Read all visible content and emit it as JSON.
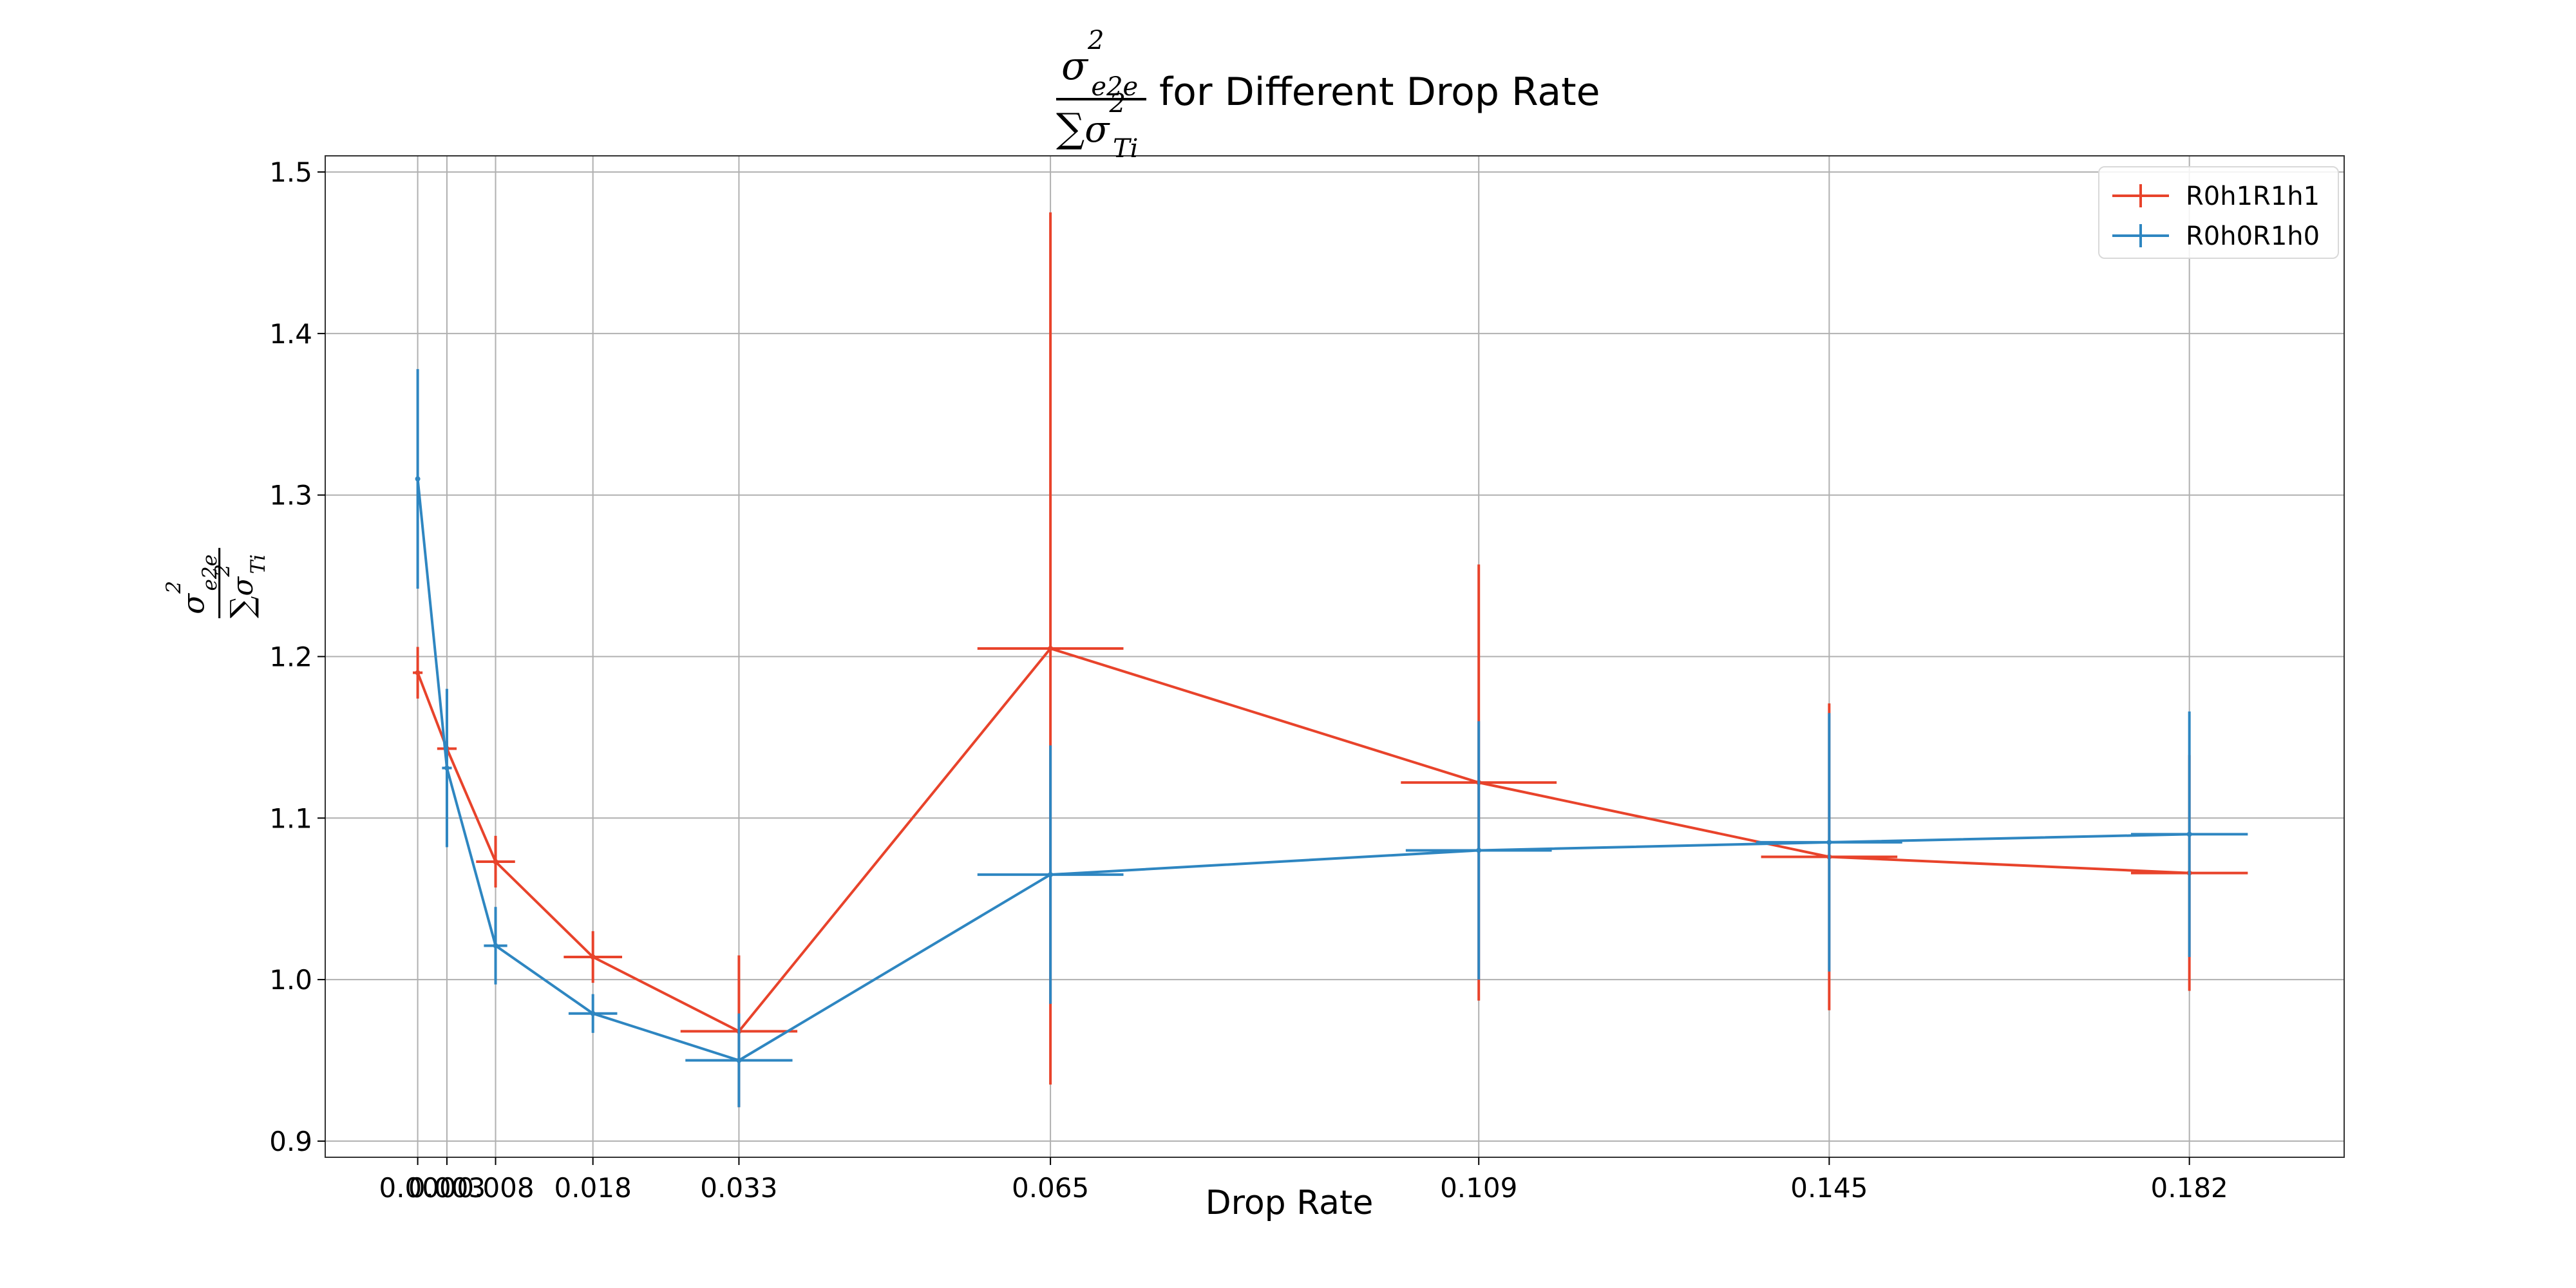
{
  "chart_data": {
    "type": "line",
    "title": "for Different Drop Rate",
    "title_math": {
      "numerator": "σ",
      "numerator_sup": "2",
      "numerator_sub": "e2e",
      "denominator_sum": "∑",
      "denominator": "σ",
      "denominator_sup": "2",
      "denominator_sub": "Ti"
    },
    "xlabel": "Drop Rate",
    "x_tick_labels": [
      "0.000",
      "0.003",
      "0.008",
      "0.018",
      "0.033",
      "0.065",
      "0.109",
      "0.145",
      "0.182"
    ],
    "ylim": [
      0.89,
      1.51
    ],
    "y_ticks": [
      0.9,
      1.0,
      1.1,
      1.2,
      1.3,
      1.4,
      1.5
    ],
    "y_tick_labels": [
      "0.9",
      "1.0",
      "1.1",
      "1.2",
      "1.3",
      "1.4",
      "1.5"
    ],
    "grid": true,
    "legend_position": "top-right",
    "series": [
      {
        "name": "R0h1R1h1",
        "color": "#e8432b",
        "x": [
          0.0,
          0.003,
          0.008,
          0.018,
          0.033,
          0.065,
          0.109,
          0.145,
          0.182
        ],
        "y": [
          1.19,
          1.143,
          1.073,
          1.014,
          0.968,
          1.205,
          1.122,
          1.076,
          1.066
        ],
        "yerr": [
          0.016,
          0.005,
          0.016,
          0.016,
          0.047,
          0.27,
          0.135,
          0.095,
          0.073
        ],
        "xerr": [
          0.0005,
          0.001,
          0.002,
          0.003,
          0.006,
          0.0075,
          0.008,
          0.007,
          0.006
        ]
      },
      {
        "name": "R0h0R1h0",
        "color": "#2e86c1",
        "x": [
          0.0,
          0.003,
          0.008,
          0.018,
          0.033,
          0.065,
          0.109,
          0.145,
          0.182
        ],
        "y": [
          1.31,
          1.131,
          1.021,
          0.979,
          0.95,
          1.065,
          1.08,
          1.085,
          1.09
        ],
        "yerr": [
          0.068,
          0.049,
          0.024,
          0.012,
          0.029,
          0.08,
          0.08,
          0.08,
          0.076
        ],
        "xerr": [
          0.0002,
          0.0005,
          0.0012,
          0.0025,
          0.0055,
          0.0075,
          0.0075,
          0.0075,
          0.006
        ]
      }
    ]
  }
}
